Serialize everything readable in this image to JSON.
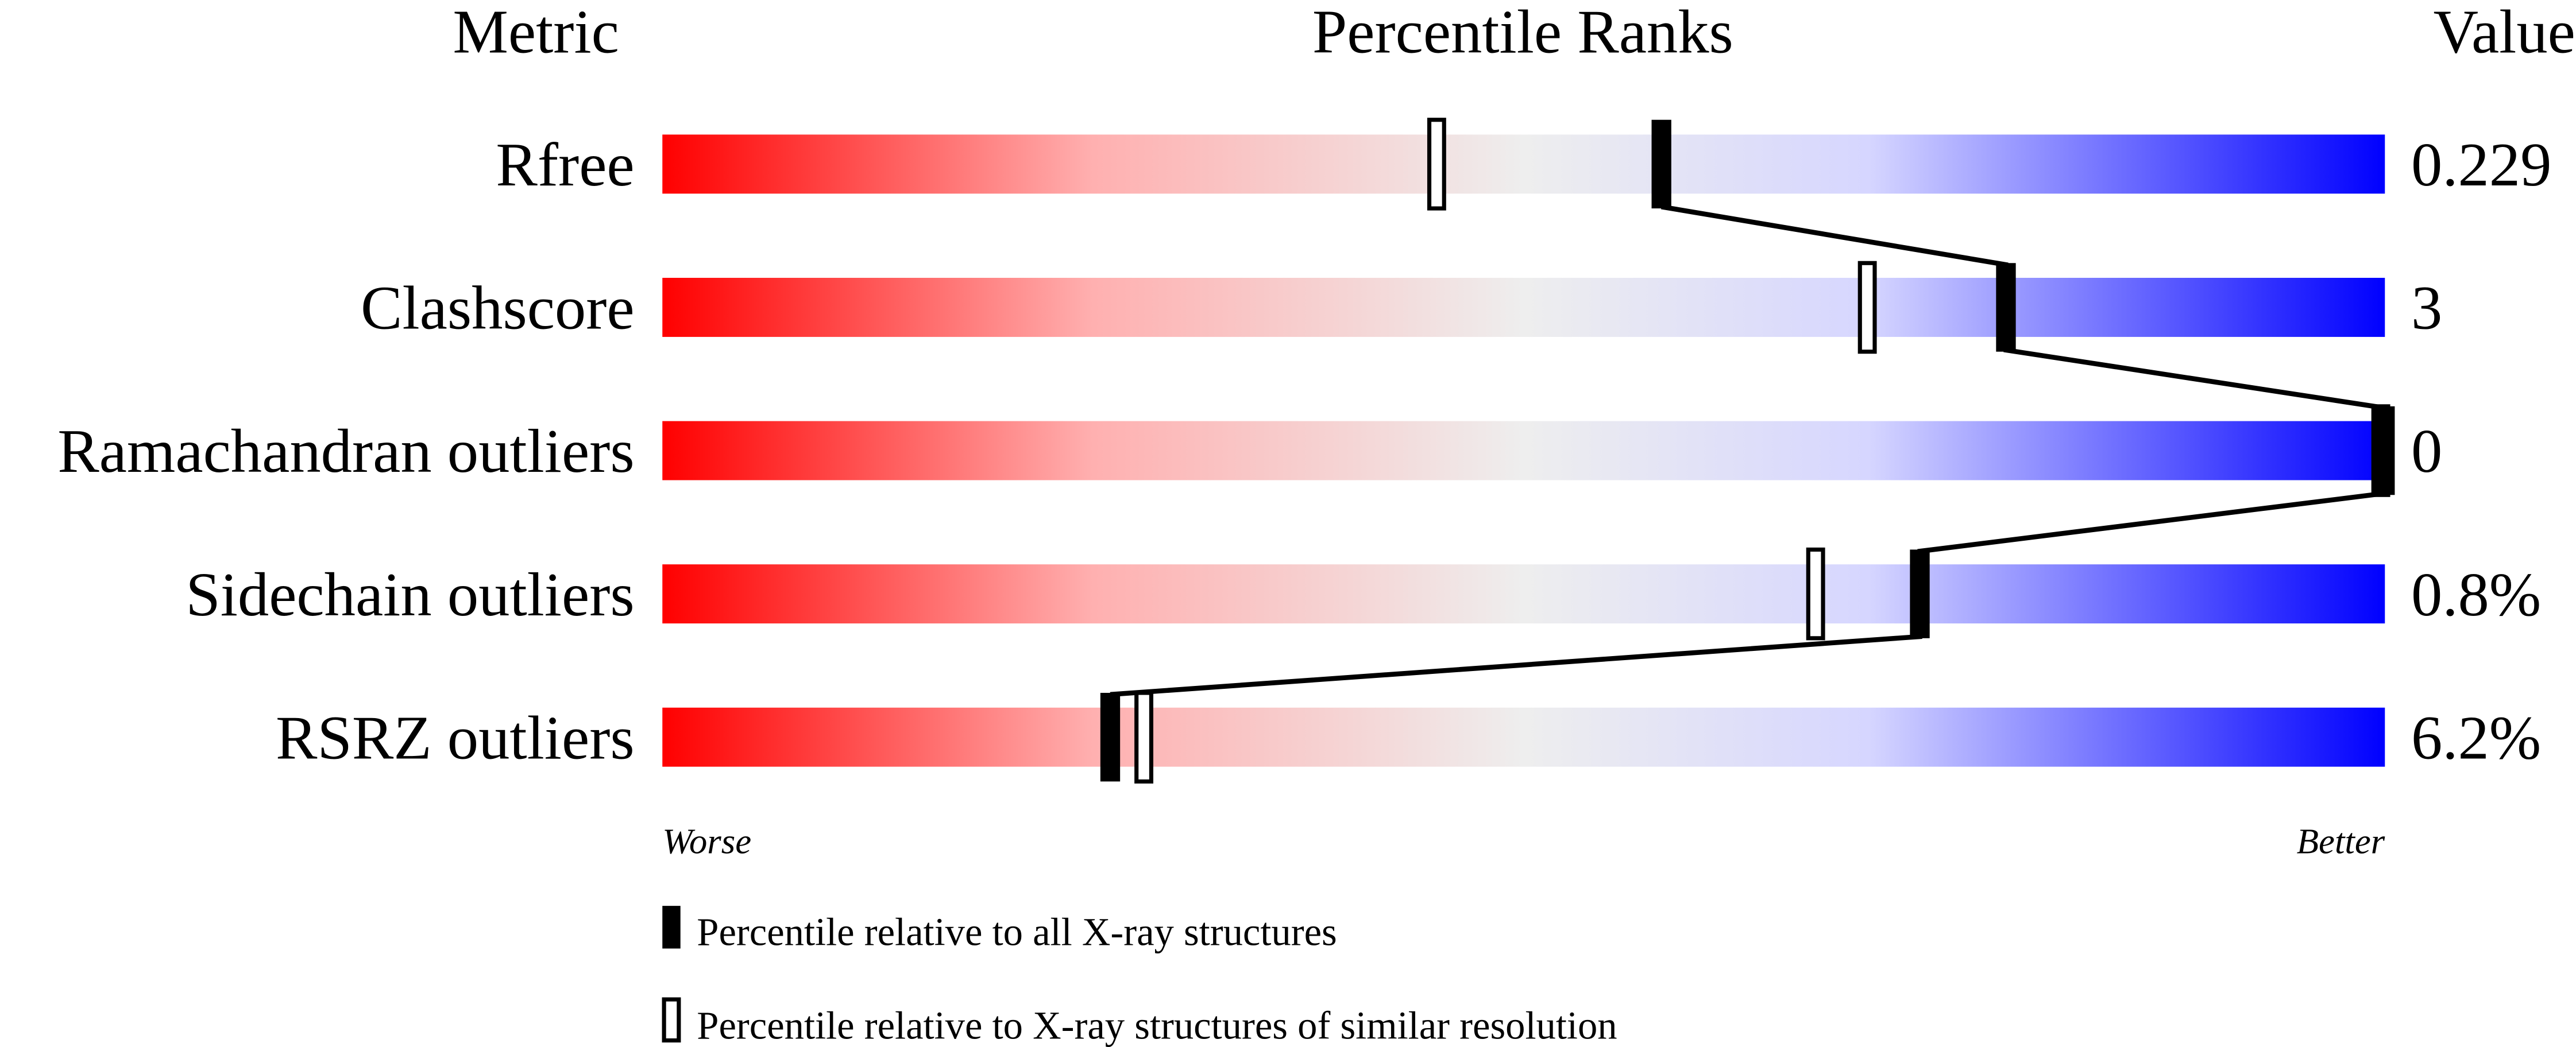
{
  "chart_data": {
    "type": "bar",
    "title": "",
    "headers": {
      "metric": "Metric",
      "ranks": "Percentile Ranks",
      "value": "Value"
    },
    "xlim": [
      0,
      100
    ],
    "axis_labels": {
      "left": "Worse",
      "right": "Better"
    },
    "gradient_colors": [
      "#ff0000",
      "#ffb0b0",
      "#eeeeee",
      "#d6d6ff",
      "#0000ff"
    ],
    "metrics": [
      {
        "name": "Rfree",
        "value": "0.229",
        "percentile_all": 58,
        "percentile_similar": 45
      },
      {
        "name": "Clashscore",
        "value": "3",
        "percentile_all": 78,
        "percentile_similar": 70
      },
      {
        "name": "Ramachandran outliers",
        "value": "0",
        "percentile_all": 100,
        "percentile_similar": 100
      },
      {
        "name": "Sidechain outliers",
        "value": "0.8%",
        "percentile_all": 73,
        "percentile_similar": 67
      },
      {
        "name": "RSRZ outliers",
        "value": "6.2%",
        "percentile_all": 26,
        "percentile_similar": 28
      }
    ],
    "legend": {
      "all": "Percentile relative to all X-ray structures",
      "similar": "Percentile relative to X-ray structures of similar resolution"
    }
  }
}
